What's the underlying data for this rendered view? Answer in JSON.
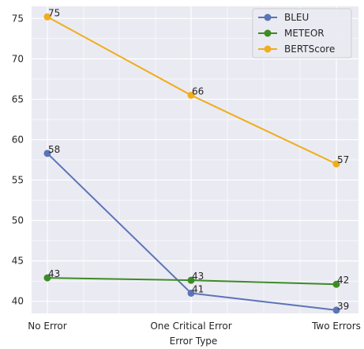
{
  "chart_data": {
    "type": "line",
    "categories": [
      "No Error",
      "One Critical Error",
      "Two Errors"
    ],
    "xlabel": "Error Type",
    "ylabel": "",
    "ylim": [
      38.5,
      76.5
    ],
    "yticks": [
      40,
      45,
      50,
      55,
      60,
      65,
      70,
      75
    ],
    "grid": true,
    "legend_position": "top-right",
    "series": [
      {
        "name": "BLEU",
        "color": "#5b74b8",
        "values": [
          58.3,
          41.0,
          38.9
        ],
        "labels": [
          "58",
          "41",
          "39"
        ]
      },
      {
        "name": "METEOR",
        "color": "#3d8b26",
        "values": [
          42.9,
          42.6,
          42.1
        ],
        "labels": [
          "43",
          "43",
          "42"
        ]
      },
      {
        "name": "BERTScore",
        "color": "#f0ad1c",
        "values": [
          75.2,
          65.5,
          57.0
        ],
        "labels": [
          "75",
          "66",
          "57"
        ]
      }
    ]
  }
}
